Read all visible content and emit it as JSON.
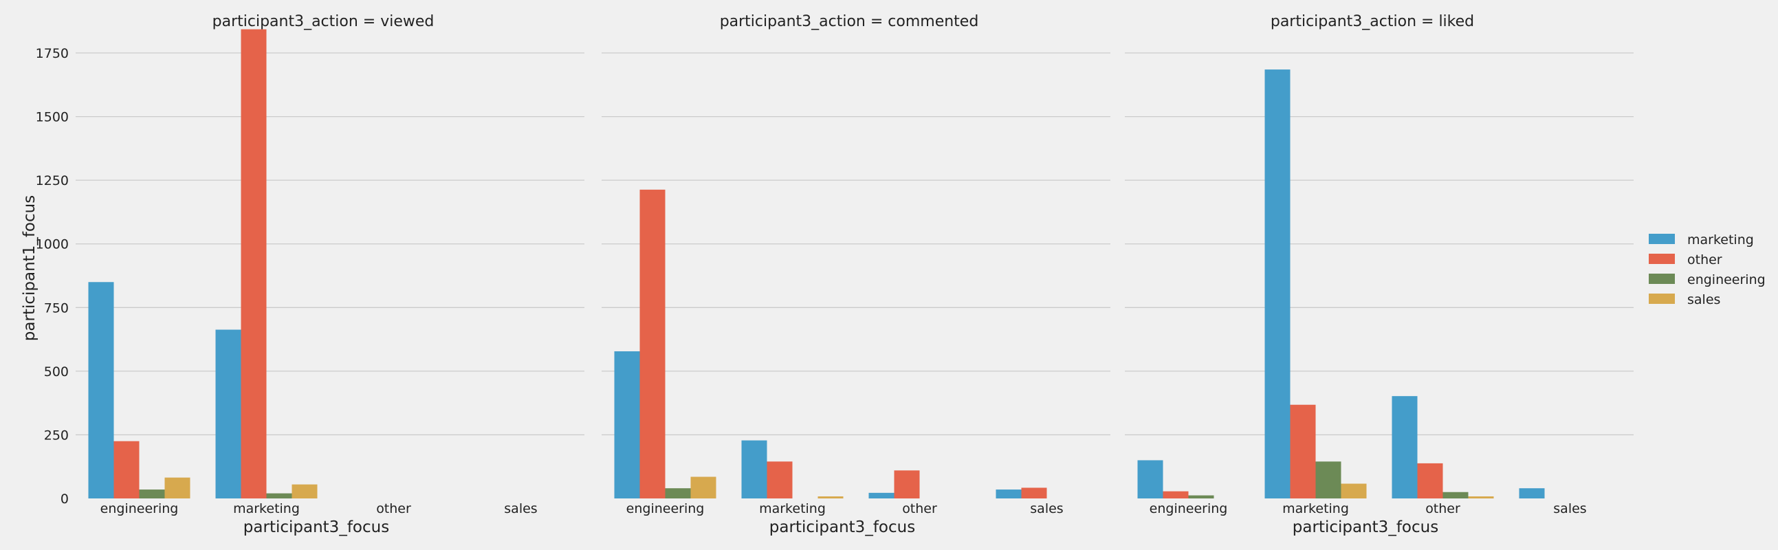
{
  "chart_data": {
    "type": "bar",
    "y_axis_label": "participant1_focus",
    "y_ticks": [
      0,
      250,
      500,
      750,
      1000,
      1250,
      1500,
      1750
    ],
    "ylim": [
      0,
      1850
    ],
    "grid": true,
    "legend_placement": "center-right",
    "hue_order": [
      "marketing",
      "other",
      "engineering",
      "sales"
    ],
    "hue_colors": {
      "marketing": "#449dca",
      "other": "#e5634a",
      "sales": "#d7a94e",
      "engineering": "#6c8a56"
    },
    "legend": [
      {
        "label": "marketing",
        "color": "#449dca"
      },
      {
        "label": "other",
        "color": "#e5634a"
      },
      {
        "label": "engineering",
        "color": "#6c8a56"
      },
      {
        "label": "sales",
        "color": "#d7a94e"
      }
    ],
    "panels": [
      {
        "title": "participant3_action = viewed",
        "x_axis_label": "participant3_focus",
        "categories": [
          "engineering",
          "marketing",
          "other",
          "sales"
        ],
        "series": [
          {
            "name": "marketing",
            "values": [
              850,
              663,
              0,
              0
            ]
          },
          {
            "name": "other",
            "values": [
              225,
              1843,
              0,
              0
            ]
          },
          {
            "name": "sales",
            "values": [
              82,
              55,
              0,
              0
            ]
          },
          {
            "name": "engineering",
            "values": [
              35,
              20,
              0,
              0
            ]
          }
        ]
      },
      {
        "title": "participant3_action = commented",
        "x_axis_label": "participant3_focus",
        "categories": [
          "engineering",
          "marketing",
          "other",
          "sales"
        ],
        "series": [
          {
            "name": "marketing",
            "values": [
              578,
              228,
              22,
              35
            ]
          },
          {
            "name": "other",
            "values": [
              1213,
              145,
              110,
              42
            ]
          },
          {
            "name": "sales",
            "values": [
              85,
              8,
              0,
              0
            ]
          },
          {
            "name": "engineering",
            "values": [
              40,
              0,
              0,
              0
            ]
          }
        ]
      },
      {
        "title": "participant3_action = liked",
        "x_axis_label": "participant3_focus",
        "categories": [
          "engineering",
          "marketing",
          "other",
          "sales"
        ],
        "series": [
          {
            "name": "marketing",
            "values": [
              150,
              1685,
              402,
              40
            ]
          },
          {
            "name": "other",
            "values": [
              28,
              368,
              138,
              0
            ]
          },
          {
            "name": "sales",
            "values": [
              0,
              58,
              8,
              0
            ]
          },
          {
            "name": "engineering",
            "values": [
              12,
              145,
              25,
              0
            ]
          }
        ]
      }
    ]
  }
}
